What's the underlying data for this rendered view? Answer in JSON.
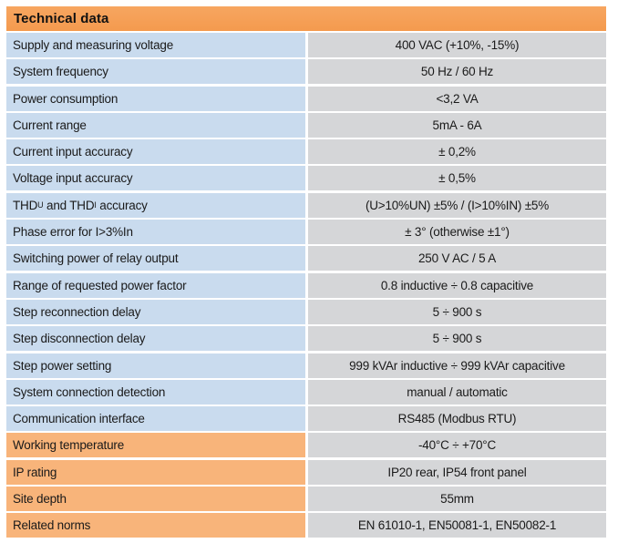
{
  "header": {
    "title": "Technical data"
  },
  "rows": [
    {
      "label": "Supply and measuring voltage",
      "value": "400 VAC (+10%, -15%)"
    },
    {
      "label": "System frequency",
      "value": "50 Hz / 60 Hz"
    },
    {
      "label": "Power consumption",
      "value": "<3,2 VA"
    },
    {
      "label": "Current range",
      "value": "5mA - 6A"
    },
    {
      "label": "Current input accuracy",
      "value": "± 0,2%"
    },
    {
      "label": "Voltage input accuracy",
      "value": "± 0,5%"
    },
    {
      "label_parts": [
        "THD",
        "U",
        " and THD",
        "I",
        " accuracy"
      ],
      "value": "(U>10%UN) ±5% / (I>10%IN) ±5%"
    },
    {
      "label": "Phase error for I>3%In",
      "value": "± 3° (otherwise ±1°)"
    },
    {
      "label": "Switching power of relay output",
      "value": "250 V AC / 5 A"
    },
    {
      "label": "Range of requested power factor",
      "value": "0.8 inductive ÷ 0.8 capacitive"
    },
    {
      "label": "Step reconnection delay",
      "value": "5 ÷ 900 s"
    },
    {
      "label": "Step disconnection delay",
      "value": "5 ÷ 900 s"
    },
    {
      "label": "Step power setting",
      "value": "999 kVAr inductive ÷ 999 kVAr capacitive"
    },
    {
      "label": "System connection detection",
      "value": "manual / automatic"
    },
    {
      "label": "Communication interface",
      "value": "RS485 (Modbus RTU)"
    },
    {
      "label": "Working temperature",
      "value": "-40°C ÷ +70°C"
    },
    {
      "label": "IP rating",
      "value": "IP20 rear, IP54 front panel"
    },
    {
      "label": "Site depth",
      "value": "55mm"
    },
    {
      "label": "Related norms",
      "value": "EN 61010-1, EN50081-1, EN50082-1"
    }
  ],
  "colors": {
    "header_bg": "#f5a058",
    "label_blue": "#c9dbee",
    "label_orange": "#f8b47a",
    "value_gray": "#d5d6d8"
  }
}
